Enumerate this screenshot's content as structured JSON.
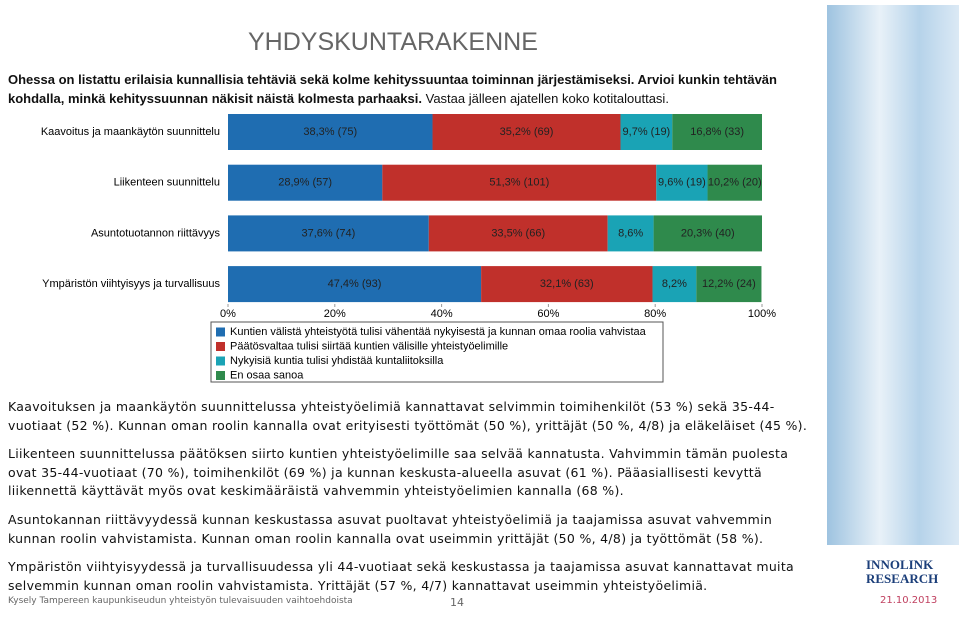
{
  "title": "YHDYSKUNTARAKENNE",
  "intro_bold": "Ohessa on listattu erilaisia kunnallisia tehtäviä sekä kolme kehityssuuntaa toiminnan järjestämiseksi. Arvioi kunkin tehtävän kohdalla, minkä kehityssuunnan näkisit näistä kolmesta parhaaksi.",
  "intro_normal": "Vastaa jälleen ajatellen koko kotitalouttasi.",
  "chart_data": {
    "type": "stacked-bar-horizontal",
    "categories": [
      "Kaavoitus ja maankäytön suunnittelu",
      "Liikenteen suunnittelu",
      "Asuntotuotannon riittävyys",
      "Ympäristön viihtyisyys ja turvallisuus"
    ],
    "series": [
      {
        "name": "Kuntien välistä yhteistyötä tulisi vähentää nykyisestä ja kunnan omaa roolia vahvistaa",
        "color": "#1f6db1",
        "values": [
          38.3,
          28.9,
          37.6,
          47.4
        ],
        "value_labels": [
          "38,3% (75)",
          "28,9% (57)",
          "37,6% (74)",
          "47,4% (93)"
        ]
      },
      {
        "name": "Päätösvaltaa tulisi siirtää kuntien välisille yhteistyöelimille",
        "color": "#c0302b",
        "values": [
          35.2,
          51.3,
          33.5,
          32.1
        ],
        "value_labels": [
          "35,2% (69)",
          "51,3% (101)",
          "33,5% (66)",
          "32,1% (63)"
        ]
      },
      {
        "name": "Nykyisiä kuntia tulisi yhdistää kuntaliitoksilla",
        "color": "#1aa3b5",
        "values": [
          9.7,
          9.6,
          8.6,
          8.2
        ],
        "value_labels": [
          "9,7% (19)",
          "9,6% (19)",
          "8,6%",
          "8,2%"
        ]
      },
      {
        "name": "En osaa sanoa",
        "color": "#2f8a4c",
        "values": [
          16.8,
          10.2,
          20.3,
          12.2
        ],
        "value_labels": [
          "16,8% (33)",
          "10,2% (20)",
          "20,3% (40)",
          "12,2% (24)"
        ]
      }
    ],
    "xlim": [
      0,
      100
    ],
    "xticks": [
      {
        "value": 0,
        "label": "0%"
      },
      {
        "value": 20,
        "label": "20%"
      },
      {
        "value": 40,
        "label": "40%"
      },
      {
        "value": 60,
        "label": "60%"
      },
      {
        "value": 80,
        "label": "80%"
      },
      {
        "value": 100,
        "label": "100%"
      }
    ]
  },
  "paragraphs": [
    "Kaavoituksen ja maankäytön suunnittelussa yhteistyöelimiä kannattavat selvimmin toimihenkilöt (53 %) sekä 35-44-vuotiaat (52 %). Kunnan oman roolin kannalla ovat erityisesti työttömät (50 %), yrittäjät (50 %, 4/8) ja eläkeläiset (45 %).",
    "Liikenteen suunnittelussa päätöksen siirto kuntien yhteistyöelimille saa selvää kannatusta. Vahvimmin tämän puolesta ovat 35-44-vuotiaat (70 %), toimihenkilöt (69 %) ja kunnan keskusta-alueella asuvat (61 %). Pääasiallisesti kevyttä liikennettä käyttävät myös ovat keskimääräistä vahvemmin yhteistyöelimien kannalla (68 %).",
    "Asuntokannan riittävyydessä kunnan keskustassa asuvat puoltavat yhteistyöelimiä ja taajamissa asuvat vahvemmin kunnan roolin vahvistamista. Kunnan oman roolin kannalla ovat useimmin yrittäjät (50 %, 4/8) ja työttömät (58 %).",
    "Ympäristön viihtyisyydessä ja turvallisuudessa yli 44-vuotiaat sekä keskustassa ja taajamissa asuvat kannattavat muita selvemmin kunnan oman roolin vahvistamista. Yrittäjät (57 %, 4/7) kannattavat useimmin yhteistyöelimiä."
  ],
  "footer": "Kysely Tampereen kaupunkiseudun yhteistyön tulevaisuuden vaihtoehdoista",
  "page_number": "14",
  "logo": [
    "INNOLINK",
    "RESEARCH"
  ],
  "date": "21.10.2013"
}
